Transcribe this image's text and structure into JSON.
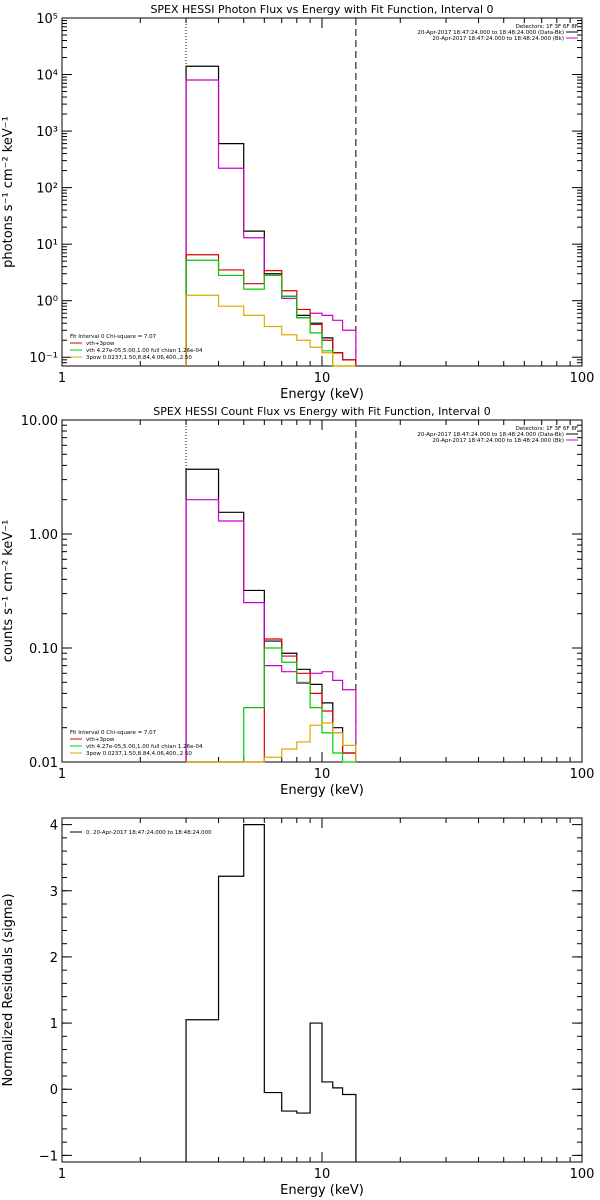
{
  "chart_data": [
    {
      "type": "line",
      "title": "SPEX HESSI Photon Flux vs Energy with Fit Function, Interval 0",
      "xlabel": "Energy (keV)",
      "ylabel": "photons s⁻¹ cm⁻² keV⁻¹",
      "x_scale": "log",
      "y_scale": "log",
      "xlim": [
        1,
        100
      ],
      "ylim": [
        0.07,
        100000
      ],
      "x_ticks": [
        "1",
        "10",
        "100"
      ],
      "y_ticks": [
        "10⁻¹",
        "10⁰",
        "10¹",
        "10²",
        "10³",
        "10⁴",
        "10⁵"
      ],
      "y_tick_values": [
        0.1,
        1,
        10,
        100,
        1000,
        10000,
        100000
      ],
      "vlines": [
        {
          "x": 3.0,
          "style": "dotted"
        },
        {
          "x": 13.5,
          "style": "dashed"
        }
      ],
      "legend_top": {
        "detectors": "Detectors: 1F 3F 6F 8F",
        "entries": [
          {
            "label": "20-Apr-2017 18:47:24.000 to 18:48:24.000 (Data-Bk)",
            "color": "#000000"
          },
          {
            "label": "20-Apr-2017 18:47:24.000 to 18:48:24.000 (Bk)",
            "color": "#cc00cc"
          }
        ]
      },
      "legend_bottom": {
        "header": "Fit Interval 0   Chi-square = 7.07",
        "entries": [
          {
            "label": "vth+3pow",
            "color": "#dd0000"
          },
          {
            "label": "vth 4.27e-05,5.00,1.00  full chian 1.26e-04",
            "color": "#00cc00"
          },
          {
            "label": "3pow 0.0237,1.50,8.84,4.06,400.,2.50",
            "color": "#ddaa00"
          }
        ]
      },
      "bin_edges": [
        3,
        4,
        5,
        6,
        7,
        8,
        9,
        10,
        11,
        12,
        13.5
      ],
      "series": [
        {
          "color": "#000000",
          "values": [
            14000,
            600,
            17,
            3.0,
            1.2,
            0.55,
            0.4,
            0.22,
            0.12,
            0.09
          ]
        },
        {
          "color": "#cc00cc",
          "values": [
            8000,
            220,
            13,
            2.8,
            1.1,
            0.5,
            0.6,
            0.55,
            0.45,
            0.3
          ]
        },
        {
          "color": "#dd0000",
          "values": [
            6.5,
            3.5,
            2.0,
            3.4,
            1.5,
            0.7,
            0.38,
            0.2,
            0.12,
            0.09
          ]
        },
        {
          "color": "#00cc00",
          "values": [
            5.2,
            2.8,
            1.6,
            2.8,
            1.2,
            0.5,
            0.27,
            0.13,
            0.07,
            0.07
          ]
        },
        {
          "color": "#ddaa00",
          "values": [
            1.25,
            0.8,
            0.55,
            0.35,
            0.25,
            0.2,
            0.15,
            0.12,
            0.07,
            0.07
          ]
        }
      ]
    },
    {
      "type": "line",
      "title": "SPEX HESSI Count Flux vs Energy with Fit Function, Interval 0",
      "xlabel": "Energy (keV)",
      "ylabel": "counts s⁻¹ cm⁻² keV⁻¹",
      "x_scale": "log",
      "y_scale": "log",
      "xlim": [
        1,
        100
      ],
      "ylim": [
        0.01,
        10
      ],
      "x_ticks": [
        "1",
        "10",
        "100"
      ],
      "y_ticks": [
        "0.01",
        "0.10",
        "1.00",
        "10.00"
      ],
      "y_tick_values": [
        0.01,
        0.1,
        1,
        10
      ],
      "vlines": [
        {
          "x": 3.0,
          "style": "dotted"
        },
        {
          "x": 13.5,
          "style": "dashed"
        }
      ],
      "legend_top": {
        "detectors": "Detectors: 1F 3F 6F 8F",
        "entries": [
          {
            "label": "20-Apr-2017 18:47:24.000 to 18:48:24.000 (Data-Bk)",
            "color": "#000000"
          },
          {
            "label": "20-Apr-2017 18:47:24.000 to 18:48:24.000 (Bk)",
            "color": "#cc00cc"
          }
        ]
      },
      "legend_bottom": {
        "header": "Fit Interval 0   Chi-square = 7.07",
        "entries": [
          {
            "label": "vth+3pow",
            "color": "#dd0000"
          },
          {
            "label": "vth 4.27e-05,5.00,1.00  full chian 1.26e-04",
            "color": "#00cc00"
          },
          {
            "label": "3pow 0.0237,1.50,8.84,4.06,400.,2.50",
            "color": "#ddaa00"
          }
        ]
      },
      "bin_edges": [
        3,
        4,
        5,
        6,
        7,
        8,
        9,
        10,
        11,
        12,
        13.5
      ],
      "series": [
        {
          "color": "#000000",
          "values": [
            3.7,
            1.55,
            0.32,
            0.115,
            0.09,
            0.065,
            0.048,
            0.033,
            0.02,
            0.012
          ]
        },
        {
          "color": "#cc00cc",
          "values": [
            2.0,
            1.3,
            0.25,
            0.07,
            0.062,
            0.049,
            0.06,
            0.062,
            0.052,
            0.043
          ]
        },
        {
          "color": "#dd0000",
          "values": [
            0.01,
            0.01,
            0.01,
            0.12,
            0.085,
            0.06,
            0.04,
            0.028,
            0.018,
            0.012
          ]
        },
        {
          "color": "#00cc00",
          "values": [
            0.01,
            0.01,
            0.03,
            0.1,
            0.075,
            0.05,
            0.03,
            0.018,
            0.012,
            0.01
          ]
        },
        {
          "color": "#ddaa00",
          "values": [
            0.01,
            0.01,
            0.01,
            0.011,
            0.013,
            0.015,
            0.021,
            0.022,
            0.018,
            0.014
          ]
        }
      ]
    },
    {
      "type": "line",
      "title": "",
      "xlabel": "Energy (keV)",
      "ylabel": "Normalized Residuals (sigma)",
      "x_scale": "log",
      "y_scale": "linear",
      "xlim": [
        1,
        100
      ],
      "ylim": [
        -1.1,
        4.1
      ],
      "x_ticks": [
        "1",
        "10",
        "100"
      ],
      "y_ticks": [
        "−1",
        "0",
        "1",
        "2",
        "3",
        "4"
      ],
      "y_tick_values": [
        -1,
        0,
        1,
        2,
        3,
        4
      ],
      "legend_top": {
        "entries": [
          {
            "label": "0. 20-Apr-2017 18:47:24.000 to 18:48:24.000",
            "color": "#000000"
          }
        ]
      },
      "bin_edges": [
        3,
        4,
        5,
        6,
        7,
        8,
        9,
        10,
        11,
        12,
        13.5
      ],
      "series": [
        {
          "color": "#000000",
          "values": [
            1.05,
            3.22,
            4.0,
            -0.05,
            -0.33,
            -0.36,
            1.0,
            0.11,
            0.02,
            -0.08
          ]
        }
      ]
    }
  ]
}
